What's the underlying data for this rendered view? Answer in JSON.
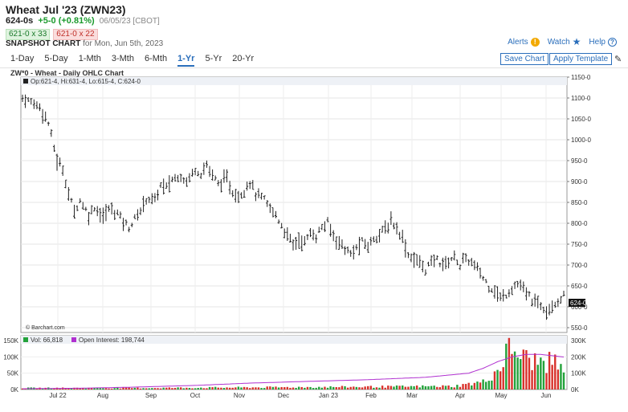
{
  "header": {
    "title": "Wheat Jul '23 (ZWN23)",
    "last": "624-0s",
    "change": "+5-0 (+0.81%)",
    "date_exchange": "06/05/23 [CBOT]",
    "bid": "621-0 x 33",
    "ask": "621-0 x 22",
    "snapshot_label": "SNAPSHOT CHART",
    "snapshot_date": "for Mon, Jun 5th, 2023"
  },
  "links": {
    "alerts": "Alerts",
    "watch": "Watch",
    "help": "Help"
  },
  "tabs": [
    {
      "label": "1-Day"
    },
    {
      "label": "5-Day"
    },
    {
      "label": "1-Mth"
    },
    {
      "label": "3-Mth"
    },
    {
      "label": "6-Mth"
    },
    {
      "label": "1-Yr"
    },
    {
      "label": "5-Yr"
    },
    {
      "label": "20-Yr"
    }
  ],
  "buttons": {
    "save": "Save Chart",
    "apply": "Apply Template"
  },
  "chart_title": "ZW*0 - Wheat - Daily OHLC Chart",
  "chart_data": {
    "type": "ohlc",
    "ohlc_legend": "Op:621-4, Hi:631-4, Lo:615-4, C:624-0",
    "last_price_label": "624-0",
    "watermark": "© Barchart.com",
    "price_axis": {
      "ticks": [
        "1150-0",
        "1100-0",
        "1050-0",
        "1000-0",
        "950-0",
        "900-0",
        "850-0",
        "800-0",
        "750-0",
        "700-0",
        "650-0",
        "600-0",
        "550-0"
      ],
      "range": [
        550,
        1150
      ]
    },
    "x_axis": {
      "labels": [
        "Jul 22",
        "Aug",
        "Sep",
        "Oct",
        "Nov",
        "Dec",
        "Jan 23",
        "Feb",
        "Mar",
        "Apr",
        "May",
        "Jun"
      ]
    },
    "price_path": [
      [
        0,
        1100
      ],
      [
        3,
        1090
      ],
      [
        6,
        1080
      ],
      [
        9,
        1040
      ],
      [
        12,
        950
      ],
      [
        14,
        930
      ],
      [
        16,
        870
      ],
      [
        18,
        830
      ],
      [
        20,
        855
      ],
      [
        23,
        820
      ],
      [
        25,
        840
      ],
      [
        28,
        815
      ],
      [
        30,
        835
      ],
      [
        33,
        825
      ],
      [
        35,
        805
      ],
      [
        37,
        790
      ],
      [
        39,
        810
      ],
      [
        41,
        830
      ],
      [
        43,
        860
      ],
      [
        46,
        855
      ],
      [
        48,
        890
      ],
      [
        50,
        885
      ],
      [
        52,
        905
      ],
      [
        55,
        915
      ],
      [
        57,
        900
      ],
      [
        60,
        930
      ],
      [
        62,
        920
      ],
      [
        64,
        940
      ],
      [
        66,
        915
      ],
      [
        68,
        895
      ],
      [
        71,
        905
      ],
      [
        73,
        875
      ],
      [
        75,
        865
      ],
      [
        77,
        880
      ],
      [
        79,
        900
      ],
      [
        81,
        870
      ],
      [
        84,
        855
      ],
      [
        86,
        835
      ],
      [
        88,
        820
      ],
      [
        90,
        795
      ],
      [
        92,
        770
      ],
      [
        94,
        750
      ],
      [
        96,
        760
      ],
      [
        98,
        755
      ],
      [
        100,
        775
      ],
      [
        102,
        770
      ],
      [
        104,
        790
      ],
      [
        106,
        800
      ],
      [
        108,
        770
      ],
      [
        110,
        755
      ],
      [
        112,
        740
      ],
      [
        114,
        725
      ],
      [
        116,
        740
      ],
      [
        118,
        755
      ],
      [
        120,
        745
      ],
      [
        122,
        765
      ],
      [
        124,
        775
      ],
      [
        126,
        785
      ],
      [
        128,
        805
      ],
      [
        130,
        790
      ],
      [
        132,
        765
      ],
      [
        134,
        725
      ],
      [
        136,
        715
      ],
      [
        138,
        705
      ],
      [
        140,
        690
      ],
      [
        142,
        705
      ],
      [
        144,
        715
      ],
      [
        146,
        700
      ],
      [
        148,
        710
      ],
      [
        150,
        720
      ],
      [
        152,
        700
      ],
      [
        154,
        715
      ],
      [
        156,
        705
      ],
      [
        158,
        690
      ],
      [
        160,
        670
      ],
      [
        162,
        650
      ],
      [
        164,
        640
      ],
      [
        166,
        620
      ],
      [
        168,
        630
      ],
      [
        170,
        645
      ],
      [
        172,
        655
      ],
      [
        174,
        640
      ],
      [
        176,
        625
      ],
      [
        178,
        610
      ],
      [
        180,
        605
      ],
      [
        182,
        595
      ],
      [
        184,
        605
      ],
      [
        186,
        615
      ],
      [
        188,
        624
      ]
    ],
    "volume_legend": "Vol: 66,818",
    "oi_legend": "Open Interest: 198,744",
    "volume_axis": {
      "ticks": [
        "150K",
        "100K",
        "50K",
        "0K"
      ],
      "range": [
        0,
        150000
      ]
    },
    "oi_axis": {
      "ticks": [
        "300K",
        "200K",
        "100K",
        "0K"
      ],
      "range": [
        0,
        300000
      ]
    },
    "volume_path": [
      [
        0,
        5000
      ],
      [
        40,
        5000
      ],
      [
        80,
        7000
      ],
      [
        120,
        9000
      ],
      [
        150,
        11000
      ],
      [
        160,
        25000
      ],
      [
        164,
        55000
      ],
      [
        166,
        75000
      ],
      [
        168,
        120000
      ],
      [
        170,
        135000
      ],
      [
        175,
        100000
      ],
      [
        180,
        90000
      ],
      [
        185,
        88000
      ],
      [
        188,
        67000
      ]
    ],
    "oi_path": [
      [
        0,
        5000
      ],
      [
        20,
        8000
      ],
      [
        40,
        15000
      ],
      [
        60,
        25000
      ],
      [
        80,
        40000
      ],
      [
        100,
        50000
      ],
      [
        120,
        60000
      ],
      [
        140,
        75000
      ],
      [
        155,
        100000
      ],
      [
        160,
        130000
      ],
      [
        165,
        170000
      ],
      [
        170,
        200000
      ],
      [
        175,
        215000
      ],
      [
        180,
        215000
      ],
      [
        188,
        199000
      ]
    ],
    "colors": {
      "bar": "#222222",
      "up": "#23a23a",
      "down": "#d8322c",
      "oi": "#b030d0"
    }
  }
}
